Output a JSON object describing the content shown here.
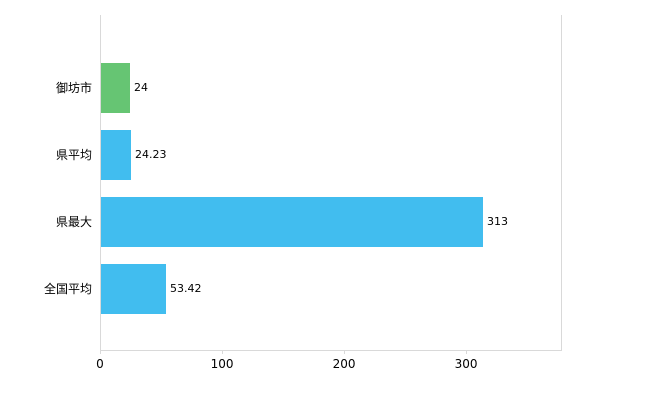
{
  "chart_data": {
    "type": "bar",
    "orientation": "horizontal",
    "title": "",
    "xlabel": "",
    "ylabel": "",
    "categories": [
      "御坊市",
      "県平均",
      "県最大",
      "全国平均"
    ],
    "values": [
      24,
      24.23,
      313,
      53.42
    ],
    "value_labels": [
      "24",
      "24.23",
      "313",
      "53.42"
    ],
    "bar_colors": [
      "#66c573",
      "#41bdef",
      "#41bdef",
      "#41bdef"
    ],
    "xlim": [
      0,
      377
    ],
    "x_ticks": [
      0,
      100,
      200,
      300
    ],
    "x_tick_labels": [
      "0",
      "100",
      "200",
      "300"
    ],
    "grid": false,
    "legend": false,
    "axis_color": "#d9d9d9",
    "text_color": "#000000",
    "background_color": "#ffffff"
  }
}
